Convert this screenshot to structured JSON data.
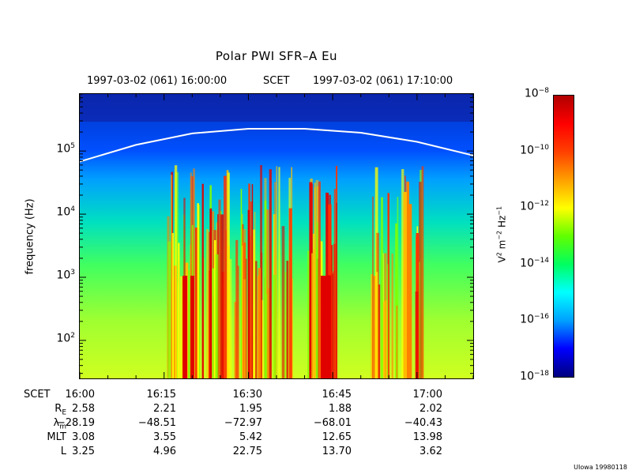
{
  "header": {
    "title": "Polar PWI SFR–A Eu",
    "start_time": "1997-03-02 (061) 16:00:00",
    "scet_label": "SCET",
    "end_time": "1997-03-02 (061) 17:10:00"
  },
  "chart_data": {
    "type": "heatmap",
    "title": "Polar PWI SFR–A Eu",
    "ylabel": "frequency (Hz)",
    "yscale": "log",
    "ylim": [
      25,
      800000
    ],
    "y_ticks": [
      "10",
      "10",
      "10",
      "10"
    ],
    "y_tick_exponents": [
      "2",
      "3",
      "4",
      "5"
    ],
    "x_ticks": [
      "16:00",
      "16:15",
      "16:30",
      "16:45",
      "17:00"
    ],
    "xlim": [
      "16:00",
      "17:10"
    ],
    "colorbar": {
      "label": "V",
      "label_parts": [
        "V",
        "2",
        " m",
        "−2",
        " Hz",
        "−1"
      ],
      "scale": "log",
      "range": [
        1e-18,
        1e-08
      ],
      "ticks": [
        "10",
        "10",
        "10",
        "10",
        "10",
        "10"
      ],
      "tick_exponents": [
        "−8",
        "−10",
        "−12",
        "−14",
        "−16",
        "−18"
      ],
      "colors": [
        "#00007f",
        "#0000ff",
        "#00a0ff",
        "#00ffff",
        "#00ff60",
        "#60ff00",
        "#ffff00",
        "#ffa000",
        "#ff4000",
        "#ff0000",
        "#b00000"
      ]
    },
    "curve": {
      "name": "",
      "color": "#ffffff",
      "time_minutes": [
        0,
        10,
        20,
        30,
        40,
        50,
        60,
        70
      ],
      "frequency_hz": [
        68000,
        125000,
        190000,
        225000,
        225000,
        195000,
        140000,
        85000
      ]
    }
  },
  "ephemeris": {
    "rows": [
      {
        "label": "SCET",
        "values": [
          "16:00",
          "16:15",
          "16:30",
          "16:45",
          "17:00"
        ]
      },
      {
        "label": "R",
        "sub": "E",
        "values": [
          "2.58",
          "2.21",
          "1.95",
          "1.88",
          "2.02"
        ]
      },
      {
        "label": "λ",
        "sub": "m",
        "values": [
          "−28.19",
          "−48.51",
          "−72.97",
          "−68.01",
          "−40.43"
        ]
      },
      {
        "label": "MLT",
        "sub": "",
        "values": [
          "3.08",
          "3.55",
          "5.42",
          "12.65",
          "13.98"
        ]
      },
      {
        "label": "L",
        "sub": "",
        "values": [
          "3.25",
          "4.96",
          "22.75",
          "13.70",
          "3.62"
        ]
      }
    ]
  },
  "credit": "UIowa 19980118"
}
